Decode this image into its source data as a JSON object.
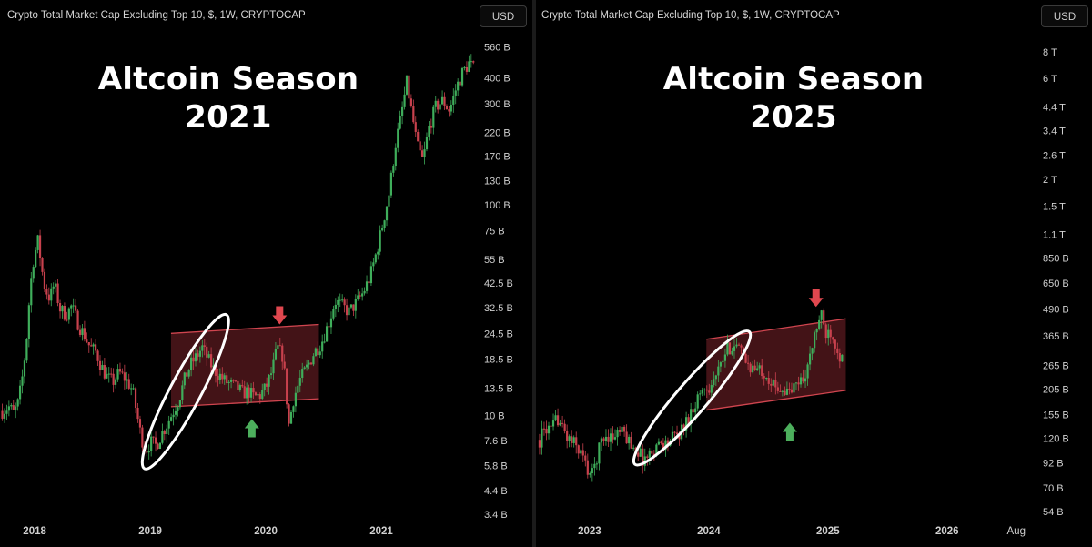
{
  "colors": {
    "up": "#3fae5b",
    "down": "#c8414d",
    "channel_fill": "#5a1a1f",
    "channel_line": "#d0454f",
    "ellipse": "#ffffff",
    "arrow_down": "#e0474f",
    "arrow_up": "#4caf5c"
  },
  "chart_data": [
    {
      "type": "candlestick",
      "title": "Crypto Total Market Cap Excluding Top 10, $, 1W, CRYPTOCAP",
      "currency_button": "USD",
      "heading_line1": "Altcoin Season",
      "heading_line2": "2021",
      "y_scale": "log",
      "y_tick_labels": [
        "560 B",
        "400 B",
        "300 B",
        "220 B",
        "170 B",
        "130 B",
        "100 B",
        "75 B",
        "55 B",
        "42.5 B",
        "32.5 B",
        "24.5 B",
        "18.5 B",
        "13.5 B",
        "10 B",
        "7.6 B",
        "5.8 B",
        "4.4 B",
        "3.4 B"
      ],
      "y_tick_values": [
        560,
        400,
        300,
        220,
        170,
        130,
        100,
        75,
        55,
        42.5,
        32.5,
        24.5,
        18.5,
        13.5,
        10,
        7.6,
        5.8,
        4.4,
        3.4
      ],
      "x_tick_labels": [
        "2018",
        "2019",
        "2020",
        "2021"
      ],
      "x_tick_values": [
        2018,
        2019,
        2020,
        2021
      ],
      "xlim": [
        2017.7,
        2021.85
      ],
      "ylim_billions": [
        3.3,
        640
      ],
      "path": [
        [
          2017.72,
          10.5
        ],
        [
          2017.78,
          11
        ],
        [
          2017.82,
          10.2
        ],
        [
          2017.86,
          11.6
        ],
        [
          2017.9,
          16
        ],
        [
          2017.93,
          23
        ],
        [
          2017.96,
          40
        ],
        [
          2017.99,
          55
        ],
        [
          2018.03,
          68
        ],
        [
          2018.06,
          50
        ],
        [
          2018.09,
          40
        ],
        [
          2018.13,
          36
        ],
        [
          2018.17,
          42
        ],
        [
          2018.22,
          32
        ],
        [
          2018.27,
          30
        ],
        [
          2018.32,
          33
        ],
        [
          2018.38,
          27
        ],
        [
          2018.43,
          24
        ],
        [
          2018.48,
          21
        ],
        [
          2018.53,
          20
        ],
        [
          2018.58,
          17
        ],
        [
          2018.63,
          15
        ],
        [
          2018.68,
          14.5
        ],
        [
          2018.73,
          16
        ],
        [
          2018.78,
          15
        ],
        [
          2018.82,
          14
        ],
        [
          2018.85,
          13
        ],
        [
          2018.88,
          10.5
        ],
        [
          2018.92,
          8
        ],
        [
          2018.96,
          6.8
        ],
        [
          2019.0,
          7.5
        ],
        [
          2019.05,
          7.2
        ],
        [
          2019.1,
          8.2
        ],
        [
          2019.15,
          9.2
        ],
        [
          2019.2,
          10.5
        ],
        [
          2019.25,
          12
        ],
        [
          2019.3,
          15
        ],
        [
          2019.35,
          17.5
        ],
        [
          2019.4,
          19
        ],
        [
          2019.45,
          21
        ],
        [
          2019.5,
          18.5
        ],
        [
          2019.55,
          16.5
        ],
        [
          2019.6,
          15.5
        ],
        [
          2019.65,
          14.5
        ],
        [
          2019.7,
          14
        ],
        [
          2019.75,
          13.5
        ],
        [
          2019.8,
          12.8
        ],
        [
          2019.85,
          13
        ],
        [
          2019.9,
          12.2
        ],
        [
          2019.95,
          12.5
        ],
        [
          2020.0,
          13.5
        ],
        [
          2020.05,
          16
        ],
        [
          2020.1,
          21
        ],
        [
          2020.15,
          19
        ],
        [
          2020.2,
          9
        ],
        [
          2020.24,
          12
        ],
        [
          2020.3,
          15
        ],
        [
          2020.36,
          17
        ],
        [
          2020.42,
          20
        ],
        [
          2020.48,
          22
        ],
        [
          2020.55,
          28
        ],
        [
          2020.6,
          35
        ],
        [
          2020.66,
          33
        ],
        [
          2020.72,
          31
        ],
        [
          2020.78,
          34
        ],
        [
          2020.84,
          38
        ],
        [
          2020.9,
          45
        ],
        [
          2020.96,
          60
        ],
        [
          2021.02,
          85
        ],
        [
          2021.07,
          115
        ],
        [
          2021.12,
          190
        ],
        [
          2021.17,
          260
        ],
        [
          2021.22,
          380
        ],
        [
          2021.27,
          260
        ],
        [
          2021.31,
          190
        ],
        [
          2021.36,
          160
        ],
        [
          2021.41,
          230
        ],
        [
          2021.47,
          290
        ],
        [
          2021.53,
          310
        ],
        [
          2021.59,
          280
        ],
        [
          2021.65,
          360
        ],
        [
          2021.7,
          420
        ],
        [
          2021.76,
          470
        ],
        [
          2021.81,
          430
        ]
      ],
      "channel": {
        "x_start": 2019.18,
        "x_end": 2020.46,
        "top_start": 24.5,
        "top_end": 27,
        "bottom_start": 11,
        "bottom_end": 12
      },
      "ellipse": {
        "x_from": 2018.98,
        "y_from": 6.0,
        "x_to": 2019.63,
        "y_to": 28
      },
      "arrow_down": {
        "x": 2020.12,
        "y": 27
      },
      "arrow_up": {
        "x": 2019.88,
        "y": 9.6
      }
    },
    {
      "type": "candlestick",
      "title": "Crypto Total Market Cap Excluding Top 10, $, 1W, CRYPTOCAP",
      "currency_button": "USD",
      "heading_line1": "Altcoin Season",
      "heading_line2": "2025",
      "y_scale": "log",
      "y_tick_labels": [
        "8 T",
        "6 T",
        "4.4 T",
        "3.4 T",
        "2.6 T",
        "2 T",
        "1.5 T",
        "1.1 T",
        "850 B",
        "650 B",
        "490 B",
        "365 B",
        "265 B",
        "205 B",
        "155 B",
        "120 B",
        "92 B",
        "70 B",
        "54 B"
      ],
      "y_tick_values": [
        8000,
        6000,
        4400,
        3400,
        2600,
        2000,
        1500,
        1100,
        850,
        650,
        490,
        365,
        265,
        205,
        155,
        120,
        92,
        70,
        54
      ],
      "x_tick_labels": [
        "2023",
        "2024",
        "2025",
        "2026",
        "Aug"
      ],
      "x_tick_values": [
        2023,
        2024,
        2025,
        2026,
        2026.58
      ],
      "xlim": [
        2022.55,
        2026.75
      ],
      "ylim_billions": [
        52,
        9200
      ],
      "path": [
        [
          2022.58,
          118
        ],
        [
          2022.63,
          135
        ],
        [
          2022.68,
          128
        ],
        [
          2022.73,
          152
        ],
        [
          2022.78,
          130
        ],
        [
          2022.83,
          118
        ],
        [
          2022.88,
          112
        ],
        [
          2022.93,
          102
        ],
        [
          2022.98,
          86
        ],
        [
          2023.02,
          80
        ],
        [
          2023.06,
          98
        ],
        [
          2023.1,
          118
        ],
        [
          2023.15,
          125
        ],
        [
          2023.2,
          121
        ],
        [
          2023.25,
          130
        ],
        [
          2023.3,
          123
        ],
        [
          2023.35,
          113
        ],
        [
          2023.4,
          106
        ],
        [
          2023.45,
          95
        ],
        [
          2023.5,
          100
        ],
        [
          2023.55,
          109
        ],
        [
          2023.6,
          115
        ],
        [
          2023.65,
          113
        ],
        [
          2023.7,
          121
        ],
        [
          2023.75,
          126
        ],
        [
          2023.8,
          140
        ],
        [
          2023.85,
          160
        ],
        [
          2023.9,
          185
        ],
        [
          2023.95,
          205
        ],
        [
          2024.0,
          212
        ],
        [
          2024.05,
          228
        ],
        [
          2024.1,
          262
        ],
        [
          2024.15,
          312
        ],
        [
          2024.2,
          335
        ],
        [
          2024.25,
          318
        ],
        [
          2024.3,
          282
        ],
        [
          2024.35,
          262
        ],
        [
          2024.4,
          250
        ],
        [
          2024.45,
          255
        ],
        [
          2024.5,
          235
        ],
        [
          2024.55,
          207
        ],
        [
          2024.6,
          212
        ],
        [
          2024.65,
          197
        ],
        [
          2024.7,
          202
        ],
        [
          2024.75,
          222
        ],
        [
          2024.8,
          232
        ],
        [
          2024.85,
          287
        ],
        [
          2024.9,
          392
        ],
        [
          2024.94,
          460
        ],
        [
          2024.98,
          375
        ],
        [
          2025.02,
          392
        ],
        [
          2025.06,
          345
        ],
        [
          2025.1,
          295
        ],
        [
          2025.13,
          272
        ]
      ],
      "channel": {
        "x_start": 2023.98,
        "x_end": 2025.15,
        "top_start": 352,
        "top_end": 440,
        "bottom_start": 163,
        "bottom_end": 202
      },
      "ellipse": {
        "x_from": 2023.42,
        "y_from": 96,
        "x_to": 2024.3,
        "y_to": 360
      },
      "arrow_down": {
        "x": 2024.9,
        "y": 500
      },
      "arrow_up": {
        "x": 2024.68,
        "y": 142
      }
    }
  ]
}
